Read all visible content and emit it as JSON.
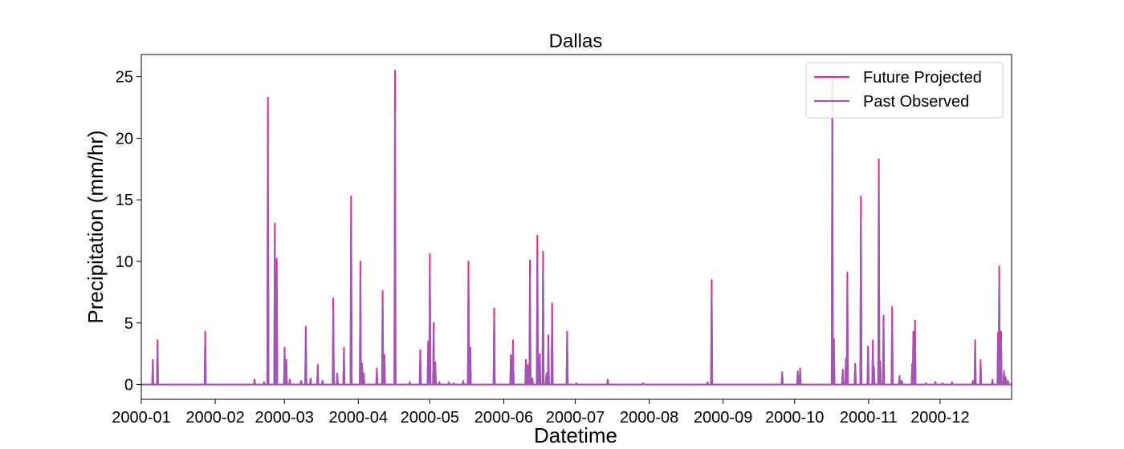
{
  "chart_data": {
    "type": "line",
    "title": "Dallas",
    "xlabel": "Datetime",
    "ylabel": "Precipitation (mm/hr)",
    "xlim": [
      0,
      365
    ],
    "ylim": [
      -1.2,
      26.8
    ],
    "yticks": [
      0,
      5,
      10,
      15,
      20,
      25
    ],
    "xticks": [
      {
        "day": 0,
        "label": "2000-01"
      },
      {
        "day": 31,
        "label": "2000-02"
      },
      {
        "day": 60,
        "label": "2000-03"
      },
      {
        "day": 91,
        "label": "2000-04"
      },
      {
        "day": 121,
        "label": "2000-05"
      },
      {
        "day": 152,
        "label": "2000-06"
      },
      {
        "day": 182,
        "label": "2000-07"
      },
      {
        "day": 213,
        "label": "2000-08"
      },
      {
        "day": 244,
        "label": "2000-09"
      },
      {
        "day": 274,
        "label": "2000-10"
      },
      {
        "day": 305,
        "label": "2000-11"
      },
      {
        "day": 335,
        "label": "2000-12"
      }
    ],
    "legend_position": "top-right",
    "grid": false,
    "series": [
      {
        "name": "Future Projected",
        "color": "#e7298a",
        "events": [
          [
            4.8,
            2.0
          ],
          [
            6.8,
            3.6
          ],
          [
            26.8,
            4.3
          ],
          [
            47.5,
            0.4
          ],
          [
            51.5,
            0.2
          ],
          [
            53.1,
            23.3
          ],
          [
            56.0,
            13.1
          ],
          [
            56.8,
            10.2
          ],
          [
            60.1,
            3.0
          ],
          [
            60.8,
            2.0
          ],
          [
            62.3,
            0.4
          ],
          [
            67.0,
            0.3
          ],
          [
            69.0,
            4.7
          ],
          [
            71.0,
            0.5
          ],
          [
            74.0,
            1.6
          ],
          [
            76.0,
            0.3
          ],
          [
            80.5,
            7.0
          ],
          [
            82.2,
            0.9
          ],
          [
            85.0,
            3.0
          ],
          [
            88.0,
            15.3
          ],
          [
            91.9,
            10.0
          ],
          [
            92.6,
            1.7
          ],
          [
            93.3,
            0.9
          ],
          [
            98.8,
            1.3
          ],
          [
            101.2,
            7.6
          ],
          [
            102.0,
            2.4
          ],
          [
            106.4,
            25.5
          ],
          [
            112.6,
            0.2
          ],
          [
            117.0,
            2.8
          ],
          [
            120.3,
            3.5
          ],
          [
            121.0,
            10.6
          ],
          [
            122.6,
            5.0
          ],
          [
            123.3,
            1.8
          ],
          [
            125.0,
            0.2
          ],
          [
            129.0,
            0.2
          ],
          [
            131.0,
            0.1
          ],
          [
            135.0,
            0.3
          ],
          [
            137.2,
            10.0
          ],
          [
            138.0,
            3.0
          ],
          [
            148.0,
            6.2
          ],
          [
            155.0,
            2.4
          ],
          [
            155.9,
            3.6
          ],
          [
            161.3,
            2.0
          ],
          [
            162.1,
            1.6
          ],
          [
            163.0,
            10.1
          ],
          [
            164.0,
            0.5
          ],
          [
            166.1,
            12.1
          ],
          [
            167.1,
            2.5
          ],
          [
            168.5,
            10.8
          ],
          [
            169.9,
            0.9
          ],
          [
            170.7,
            4.0
          ],
          [
            172.3,
            6.6
          ],
          [
            178.6,
            4.3
          ],
          [
            182.5,
            0.1
          ],
          [
            195.6,
            0.4
          ],
          [
            210.5,
            0.1
          ],
          [
            237.5,
            0.2
          ],
          [
            239.2,
            8.5
          ],
          [
            268.8,
            1.0
          ],
          [
            275.3,
            1.1
          ],
          [
            276.3,
            1.3
          ],
          [
            289.8,
            24.7
          ],
          [
            290.5,
            3.7
          ],
          [
            294.2,
            1.2
          ],
          [
            295.5,
            2.1
          ],
          [
            296.1,
            9.1
          ],
          [
            299.4,
            1.7
          ],
          [
            301.8,
            15.3
          ],
          [
            304.8,
            3.1
          ],
          [
            306.8,
            3.6
          ],
          [
            307.3,
            1.4
          ],
          [
            309.3,
            18.3
          ],
          [
            309.9,
            1.9
          ],
          [
            311.3,
            5.6
          ],
          [
            314.9,
            6.3
          ],
          [
            318.0,
            0.7
          ],
          [
            319.0,
            0.3
          ],
          [
            323.3,
            1.7
          ],
          [
            323.8,
            4.3
          ],
          [
            324.5,
            5.2
          ],
          [
            329.0,
            0.1
          ],
          [
            333.0,
            0.2
          ],
          [
            336.0,
            0.1
          ],
          [
            340.0,
            0.2
          ],
          [
            348.8,
            0.3
          ],
          [
            349.7,
            3.6
          ],
          [
            352.0,
            2.0
          ],
          [
            357.0,
            0.4
          ],
          [
            359.3,
            4.2
          ],
          [
            359.8,
            9.6
          ],
          [
            360.6,
            4.3
          ],
          [
            361.8,
            1.1
          ],
          [
            362.5,
            0.6
          ],
          [
            363.5,
            0.3
          ]
        ]
      },
      {
        "name": "Past Observed",
        "color": "#9b59b6",
        "events": [
          [
            4.8,
            1.7
          ],
          [
            6.8,
            3.1
          ],
          [
            26.8,
            3.7
          ],
          [
            47.5,
            0.3
          ],
          [
            51.5,
            0.2
          ],
          [
            53.1,
            20.2
          ],
          [
            56.0,
            11.4
          ],
          [
            56.8,
            8.8
          ],
          [
            60.1,
            2.6
          ],
          [
            60.8,
            1.7
          ],
          [
            62.3,
            0.3
          ],
          [
            67.0,
            0.3
          ],
          [
            69.0,
            4.1
          ],
          [
            71.0,
            0.4
          ],
          [
            74.0,
            1.4
          ],
          [
            76.0,
            0.3
          ],
          [
            80.5,
            6.1
          ],
          [
            82.2,
            0.8
          ],
          [
            85.0,
            2.6
          ],
          [
            88.0,
            13.3
          ],
          [
            91.9,
            8.7
          ],
          [
            92.6,
            1.5
          ],
          [
            93.3,
            0.8
          ],
          [
            98.8,
            1.1
          ],
          [
            101.2,
            6.6
          ],
          [
            102.0,
            2.1
          ],
          [
            106.4,
            22.2
          ],
          [
            112.6,
            0.2
          ],
          [
            117.0,
            2.4
          ],
          [
            120.3,
            3.0
          ],
          [
            121.0,
            9.2
          ],
          [
            122.6,
            4.3
          ],
          [
            123.3,
            1.6
          ],
          [
            125.0,
            0.2
          ],
          [
            129.0,
            0.2
          ],
          [
            131.0,
            0.1
          ],
          [
            135.0,
            0.3
          ],
          [
            137.2,
            8.7
          ],
          [
            138.0,
            2.6
          ],
          [
            148.0,
            5.4
          ],
          [
            155.0,
            2.1
          ],
          [
            155.9,
            3.1
          ],
          [
            161.3,
            1.7
          ],
          [
            162.1,
            1.4
          ],
          [
            163.0,
            8.8
          ],
          [
            164.0,
            0.4
          ],
          [
            166.1,
            10.5
          ],
          [
            167.1,
            2.2
          ],
          [
            168.5,
            9.4
          ],
          [
            169.9,
            0.8
          ],
          [
            170.7,
            3.5
          ],
          [
            172.3,
            5.7
          ],
          [
            178.6,
            3.7
          ],
          [
            182.5,
            0.1
          ],
          [
            195.6,
            0.3
          ],
          [
            210.5,
            0.1
          ],
          [
            237.5,
            0.2
          ],
          [
            239.2,
            7.4
          ],
          [
            268.8,
            0.9
          ],
          [
            275.3,
            1.0
          ],
          [
            276.3,
            1.1
          ],
          [
            289.8,
            21.5
          ],
          [
            290.5,
            3.2
          ],
          [
            294.2,
            1.0
          ],
          [
            295.5,
            1.8
          ],
          [
            296.1,
            7.9
          ],
          [
            299.4,
            1.5
          ],
          [
            301.8,
            13.3
          ],
          [
            304.8,
            2.7
          ],
          [
            306.8,
            3.1
          ],
          [
            307.3,
            1.2
          ],
          [
            309.3,
            15.9
          ],
          [
            309.9,
            1.7
          ],
          [
            311.3,
            4.9
          ],
          [
            314.9,
            5.5
          ],
          [
            318.0,
            0.6
          ],
          [
            319.0,
            0.3
          ],
          [
            323.3,
            1.5
          ],
          [
            323.8,
            3.7
          ],
          [
            324.5,
            4.5
          ],
          [
            329.0,
            0.1
          ],
          [
            333.0,
            0.2
          ],
          [
            336.0,
            0.1
          ],
          [
            340.0,
            0.2
          ],
          [
            348.8,
            0.3
          ],
          [
            349.7,
            3.1
          ],
          [
            352.0,
            1.7
          ],
          [
            357.0,
            0.3
          ],
          [
            359.3,
            3.7
          ],
          [
            359.8,
            8.4
          ],
          [
            360.6,
            3.7
          ],
          [
            361.8,
            1.0
          ],
          [
            362.5,
            0.5
          ],
          [
            363.5,
            0.3
          ]
        ]
      }
    ]
  }
}
